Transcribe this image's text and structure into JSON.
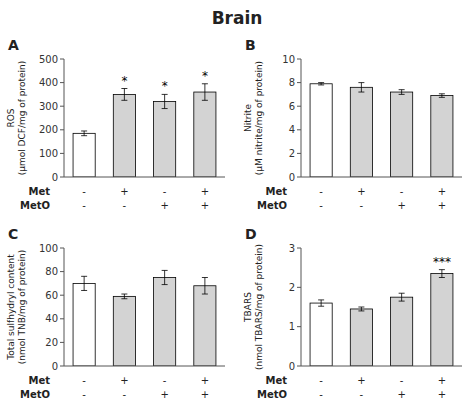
{
  "title": "Brain",
  "chart_data": [
    {
      "type": "bar",
      "title": "A",
      "y_label": "ROS\n(μmol DCF/mg of protein)",
      "categories": [
        null,
        null,
        null,
        null
      ],
      "values": [
        185,
        350,
        320,
        360
      ],
      "errors": [
        10,
        25,
        30,
        35
      ],
      "colors": [
        "#ffffff",
        "#d3d3d3",
        "#d3d3d3",
        "#d3d3d3"
      ],
      "significance": [
        null,
        "*",
        "*",
        "*"
      ],
      "ylim": [
        0,
        500
      ],
      "yticks": [
        0,
        100,
        200,
        300,
        400,
        500
      ],
      "tick_labels": "y",
      "grid": false,
      "annotations": {
        "rows": [
          {
            "label": "Met",
            "values": [
              "-",
              "+",
              "-",
              "+"
            ]
          },
          {
            "label": "MetO",
            "values": [
              "-",
              "-",
              "+",
              "+"
            ]
          }
        ]
      }
    },
    {
      "type": "bar",
      "title": "B",
      "y_label": "Nitrite\n(μM nitrite/mg of protein)",
      "categories": [
        null,
        null,
        null,
        null
      ],
      "values": [
        7.9,
        7.6,
        7.2,
        6.9
      ],
      "errors": [
        0.1,
        0.4,
        0.2,
        0.15
      ],
      "colors": [
        "#ffffff",
        "#d3d3d3",
        "#d3d3d3",
        "#d3d3d3"
      ],
      "significance": [
        null,
        null,
        null,
        null
      ],
      "ylim": [
        0,
        10
      ],
      "yticks": [
        0,
        2,
        4,
        6,
        8,
        10
      ],
      "tick_labels": "y",
      "grid": false,
      "annotations": {
        "rows": [
          {
            "label": "Met",
            "values": [
              "-",
              "+",
              "-",
              "+"
            ]
          },
          {
            "label": "MetO",
            "values": [
              "-",
              "-",
              "+",
              "+"
            ]
          }
        ]
      }
    },
    {
      "type": "bar",
      "title": "C",
      "y_label": "Total sulfhydryl content\n(nmol TNB/mg of protein)",
      "categories": [
        null,
        null,
        null,
        null
      ],
      "values": [
        70,
        59,
        75,
        68
      ],
      "errors": [
        6,
        2,
        6,
        7
      ],
      "colors": [
        "#ffffff",
        "#d3d3d3",
        "#d3d3d3",
        "#d3d3d3"
      ],
      "significance": [
        null,
        null,
        null,
        null
      ],
      "ylim": [
        0,
        100
      ],
      "yticks": [
        0,
        20,
        40,
        60,
        80,
        100
      ],
      "tick_labels": "y",
      "grid": false,
      "annotations": {
        "rows": [
          {
            "label": "Met",
            "values": [
              "-",
              "+",
              "-",
              "+"
            ]
          },
          {
            "label": "MetO",
            "values": [
              "-",
              "-",
              "+",
              "+"
            ]
          }
        ]
      }
    },
    {
      "type": "bar",
      "title": "D",
      "y_label": "TBARS\n(nmol TBARS/mg of protein)",
      "categories": [
        null,
        null,
        null,
        null
      ],
      "values": [
        1.6,
        1.45,
        1.75,
        2.35
      ],
      "errors": [
        0.08,
        0.05,
        0.1,
        0.1
      ],
      "colors": [
        "#ffffff",
        "#d3d3d3",
        "#d3d3d3",
        "#d3d3d3"
      ],
      "significance": [
        null,
        null,
        null,
        "***"
      ],
      "ylim": [
        0,
        3
      ],
      "yticks": [
        0,
        1,
        2,
        3
      ],
      "tick_labels": "y",
      "grid": false,
      "annotations": {
        "rows": [
          {
            "label": "Met",
            "values": [
              "-",
              "+",
              "-",
              "+"
            ]
          },
          {
            "label": "MetO",
            "values": [
              "-",
              "-",
              "+",
              "+"
            ]
          }
        ]
      }
    }
  ]
}
